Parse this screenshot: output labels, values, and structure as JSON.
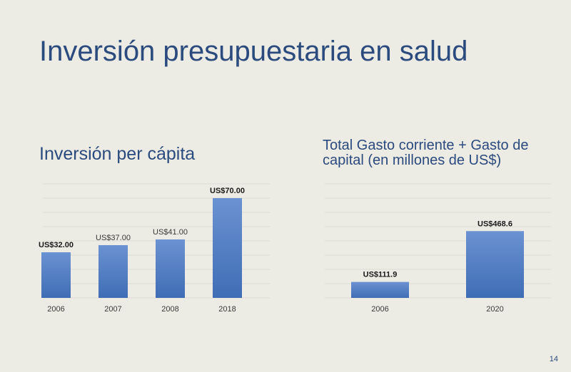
{
  "slide": {
    "title": "Inversión presupuestaria en salud",
    "page_number": "14"
  },
  "colors": {
    "bar_top": "#6b92d2",
    "bar_bottom": "#3f6db5",
    "title": "#2b4a7e",
    "grid": "#dcdbd4"
  },
  "chart_data": [
    {
      "type": "bar",
      "title": "Inversión per cápita",
      "categories": [
        "2006",
        "2007",
        "2008",
        "2018"
      ],
      "values": [
        32,
        37,
        41,
        70
      ],
      "data_labels": [
        "US$32.00",
        "US$37.00",
        "US$41.00",
        "US$70.00"
      ],
      "ylim": [
        0,
        80
      ],
      "grid": true,
      "legend": "none"
    },
    {
      "type": "bar",
      "title": "Total Gasto corriente + Gasto de capital (en millones de US$)",
      "categories": [
        "2006",
        "2020"
      ],
      "values": [
        111.9,
        468.6
      ],
      "data_labels": [
        "US$111.9",
        "US$468.6"
      ],
      "ylim": [
        0,
        800
      ],
      "grid": true,
      "legend": "none"
    }
  ]
}
